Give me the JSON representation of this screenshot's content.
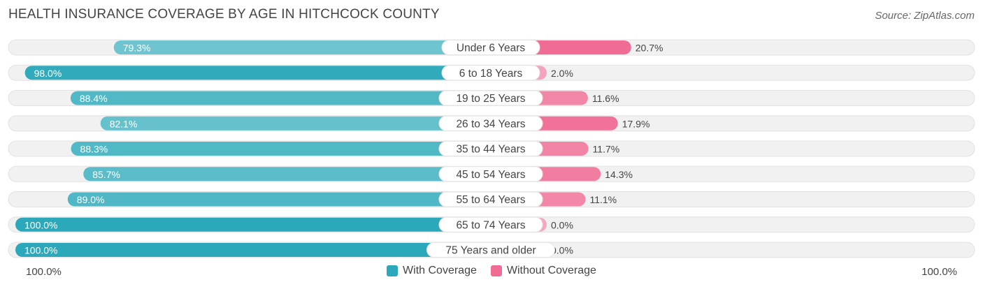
{
  "chart_data": {
    "type": "bar",
    "title": "HEALTH INSURANCE COVERAGE BY AGE IN HITCHCOCK COUNTY",
    "source": "Source: ZipAtlas.com",
    "categories": [
      "Under 6 Years",
      "6 to 18 Years",
      "19 to 25 Years",
      "26 to 34 Years",
      "35 to 44 Years",
      "45 to 54 Years",
      "55 to 64 Years",
      "65 to 74 Years",
      "75 Years and older"
    ],
    "series": [
      {
        "name": "With Coverage",
        "values": [
          79.3,
          98.0,
          88.4,
          82.1,
          88.3,
          85.7,
          89.0,
          100.0,
          100.0
        ],
        "labels": [
          "79.3%",
          "98.0%",
          "88.4%",
          "82.1%",
          "88.3%",
          "85.7%",
          "89.0%",
          "100.0%",
          "100.0%"
        ]
      },
      {
        "name": "Without Coverage",
        "values": [
          20.7,
          2.0,
          11.6,
          17.9,
          11.7,
          14.3,
          11.1,
          0.0,
          0.0
        ],
        "labels": [
          "20.7%",
          "2.0%",
          "11.6%",
          "17.9%",
          "11.7%",
          "14.3%",
          "11.1%",
          "0.0%",
          "0.0%"
        ]
      }
    ],
    "xlim": [
      0,
      100
    ],
    "axis_left_label": "100.0%",
    "axis_right_label": "100.0%",
    "legend_position": "bottom-center"
  },
  "colors": {
    "with_dark": "#2ba8b9",
    "with_light": "#7ccbd4",
    "without_dark": "#f06c94",
    "without_light": "#f5a9c0",
    "track": "#f1f1f1",
    "track_border": "#e2e2e2"
  }
}
